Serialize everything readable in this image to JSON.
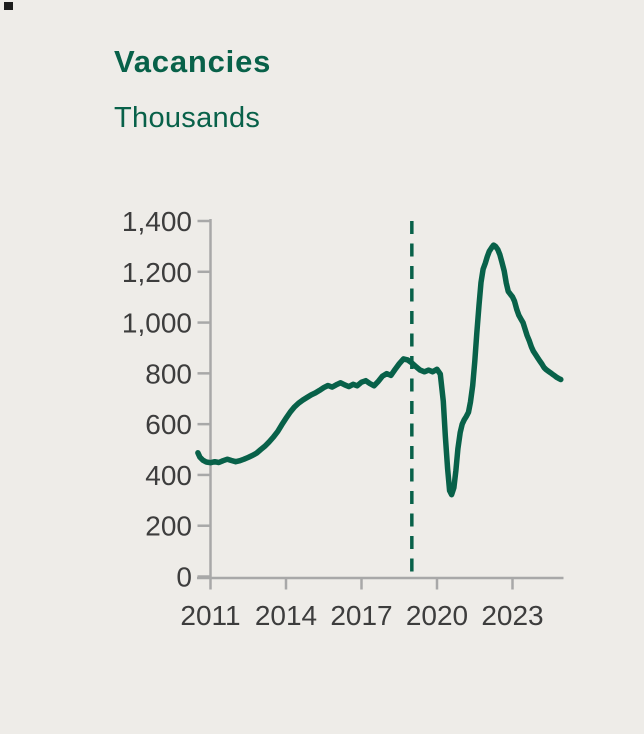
{
  "page": {
    "background": "#eeece8",
    "corner_mark_color": "#1c1c1c"
  },
  "header": {
    "title": "Vacancies",
    "subtitle": "Thousands"
  },
  "chart_data": {
    "type": "line",
    "title": "Vacancies",
    "ylabel": "Thousands",
    "xlabel": "",
    "grid": false,
    "legend_position": "none",
    "ylim": [
      0,
      1400
    ],
    "xlim": [
      2010.45,
      2025.05
    ],
    "yticks": {
      "values": [
        1400,
        1200,
        1000,
        800,
        600,
        400,
        200,
        0
      ],
      "labels": [
        "1,400",
        "1,200",
        "1,000",
        "800",
        "600",
        "400",
        "200",
        "0"
      ]
    },
    "xticks": {
      "values": [
        2011,
        2014,
        2017,
        2020,
        2023
      ],
      "labels": [
        "2011",
        "2014",
        "2017",
        "2020",
        "2023"
      ]
    },
    "reference_line": {
      "x": 2019.0,
      "style": "dashed"
    },
    "colors": {
      "green": "#086149",
      "axis": "#a8a8a8",
      "tick_text": "#3d3d3d"
    },
    "series": [
      {
        "name": "Vacancies",
        "x": [
          2010.5,
          2010.58,
          2010.7,
          2010.83,
          2011.0,
          2011.17,
          2011.33,
          2011.5,
          2011.67,
          2011.83,
          2012.0,
          2012.17,
          2012.33,
          2012.5,
          2012.67,
          2012.83,
          2013.0,
          2013.17,
          2013.33,
          2013.5,
          2013.67,
          2013.83,
          2014.0,
          2014.17,
          2014.33,
          2014.5,
          2014.67,
          2014.83,
          2015.0,
          2015.17,
          2015.33,
          2015.5,
          2015.67,
          2015.83,
          2016.0,
          2016.17,
          2016.33,
          2016.5,
          2016.67,
          2016.83,
          2017.0,
          2017.17,
          2017.33,
          2017.5,
          2017.67,
          2017.83,
          2018.0,
          2018.17,
          2018.33,
          2018.5,
          2018.67,
          2018.83,
          2019.0,
          2019.17,
          2019.33,
          2019.5,
          2019.67,
          2019.83,
          2020.0,
          2020.13,
          2020.25,
          2020.33,
          2020.42,
          2020.5,
          2020.58,
          2020.67,
          2020.75,
          2020.83,
          2020.92,
          2021.0,
          2021.08,
          2021.17,
          2021.25,
          2021.33,
          2021.42,
          2021.5,
          2021.58,
          2021.67,
          2021.75,
          2021.83,
          2021.92,
          2022.0,
          2022.08,
          2022.17,
          2022.25,
          2022.33,
          2022.42,
          2022.5,
          2022.58,
          2022.67,
          2022.75,
          2022.83,
          2022.92,
          2023.0,
          2023.08,
          2023.17,
          2023.25,
          2023.33,
          2023.42,
          2023.5,
          2023.58,
          2023.67,
          2023.75,
          2023.83,
          2023.92,
          2024.0,
          2024.08,
          2024.17,
          2024.25,
          2024.33,
          2024.42,
          2024.5,
          2024.58,
          2024.67,
          2024.75,
          2024.83,
          2024.92
        ],
        "values": [
          487,
          470,
          458,
          451,
          448,
          452,
          449,
          456,
          462,
          457,
          452,
          456,
          462,
          469,
          477,
          486,
          500,
          514,
          530,
          549,
          571,
          597,
          623,
          648,
          667,
          683,
          695,
          705,
          715,
          723,
          733,
          744,
          752,
          746,
          755,
          763,
          755,
          748,
          757,
          751,
          765,
          771,
          760,
          751,
          769,
          789,
          799,
          792,
          815,
          838,
          857,
          853,
          841,
          826,
          813,
          806,
          813,
          806,
          816,
          797,
          690,
          555,
          425,
          338,
          322,
          350,
          418,
          503,
          567,
          600,
          617,
          631,
          647,
          688,
          752,
          848,
          958,
          1068,
          1158,
          1210,
          1234,
          1260,
          1281,
          1295,
          1305,
          1300,
          1287,
          1267,
          1238,
          1203,
          1157,
          1123,
          1111,
          1101,
          1084,
          1051,
          1029,
          1015,
          999,
          974,
          949,
          927,
          904,
          887,
          873,
          861,
          849,
          837,
          823,
          815,
          809,
          803,
          797,
          791,
          785,
          780,
          776
        ]
      }
    ]
  }
}
